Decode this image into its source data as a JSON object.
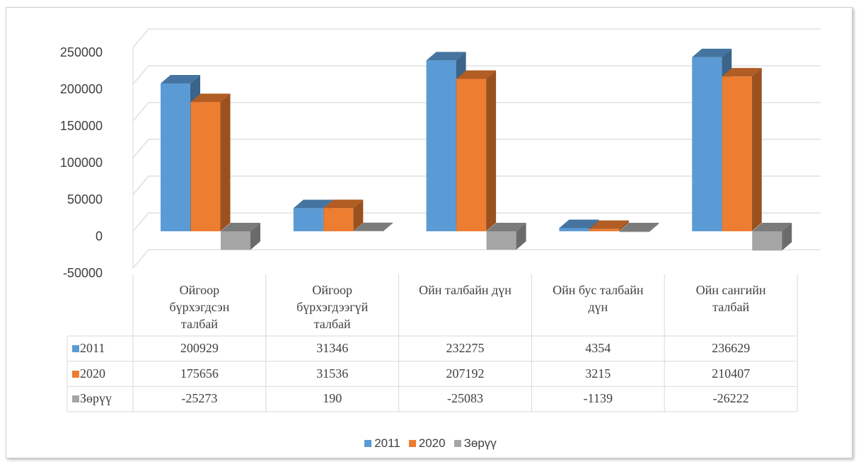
{
  "chart_data": {
    "type": "bar3d",
    "categories": [
      "Ойгоор бүрхэгдсэн талбай",
      "Ойгоор бүрхэгдээгүй талбай",
      "Ойн талбайн дүн",
      "Ойн бус талбайн дүн",
      "Ойн сангийн талбай"
    ],
    "series": [
      {
        "name": "2011",
        "color": "#5b9bd5",
        "values": [
          200929,
          31346,
          232275,
          4354,
          236629
        ]
      },
      {
        "name": "2020",
        "color": "#ed7d31",
        "values": [
          175656,
          31536,
          207192,
          3215,
          210407
        ]
      },
      {
        "name": "Зөрүү",
        "color": "#a5a5a5",
        "values": [
          -25273,
          190,
          -25083,
          -1139,
          -26222
        ]
      }
    ],
    "ylim": [
      -50000,
      250000
    ],
    "yticks": [
      -50000,
      0,
      50000,
      100000,
      150000,
      200000,
      250000
    ],
    "grid": true,
    "legend": "bottom",
    "data_table": true
  }
}
